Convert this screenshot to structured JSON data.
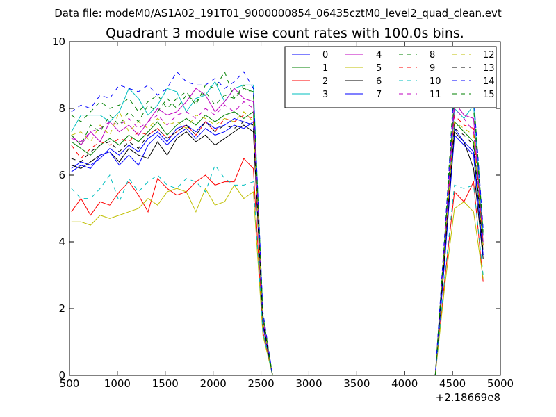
{
  "page": {
    "suptitle": "Data file: modeM0/AS1A02_191T01_9000000854_06435cztM0_level2_quad_clean.evt"
  },
  "chart_data": {
    "type": "line",
    "title": "Quadrant 3 module wise count rates with 100.0s bins.",
    "xlabel": "",
    "ylabel": "",
    "x_offset_label": "+2.18669e8",
    "xlim": [
      500,
      5000
    ],
    "ylim": [
      0,
      10
    ],
    "x_ticks": [
      500,
      1000,
      1500,
      2000,
      2500,
      3000,
      3500,
      4000,
      4500,
      5000
    ],
    "y_ticks": [
      0,
      2,
      4,
      6,
      8,
      10
    ],
    "grid": false,
    "legend_position": "top-right",
    "legend_columns": 4,
    "x": [
      520,
      620,
      720,
      820,
      920,
      1020,
      1120,
      1220,
      1320,
      1420,
      1520,
      1620,
      1720,
      1820,
      1920,
      2020,
      2120,
      2220,
      2320,
      2420,
      2520,
      2620,
      2720,
      2820,
      2920,
      3020,
      3120,
      3220,
      3320,
      3420,
      3520,
      3620,
      3720,
      3820,
      3920,
      4020,
      4120,
      4220,
      4320,
      4420,
      4520,
      4620,
      4720,
      4820
    ],
    "series": [
      {
        "name": "0",
        "color": "#0000ff",
        "dash": "solid",
        "values": [
          6.2,
          6.4,
          6.3,
          6.5,
          6.8,
          6.6,
          6.9,
          6.7,
          7.1,
          7.3,
          7.0,
          7.4,
          7.5,
          7.3,
          7.6,
          7.4,
          7.5,
          7.7,
          7.6,
          7.5,
          1.5,
          0,
          0,
          0,
          0,
          0,
          0,
          0,
          0,
          0,
          0,
          0,
          0,
          0,
          0,
          0,
          0,
          0,
          0,
          3.5,
          7.2,
          6.9,
          6.6,
          3.6
        ]
      },
      {
        "name": "1",
        "color": "#008000",
        "dash": "solid",
        "values": [
          7.0,
          6.8,
          6.6,
          6.9,
          7.1,
          6.9,
          7.2,
          7.0,
          7.3,
          7.6,
          7.2,
          7.5,
          7.7,
          7.5,
          7.8,
          7.6,
          7.8,
          7.9,
          7.7,
          7.9,
          1.6,
          0,
          0,
          0,
          0,
          0,
          0,
          0,
          0,
          0,
          0,
          0,
          0,
          0,
          0,
          0,
          0,
          0,
          0,
          3.8,
          7.6,
          7.3,
          7.0,
          3.9
        ]
      },
      {
        "name": "2",
        "color": "#ff0000",
        "dash": "solid",
        "values": [
          4.9,
          5.3,
          4.8,
          5.2,
          5.1,
          5.5,
          5.8,
          5.4,
          4.9,
          5.9,
          5.6,
          5.4,
          5.5,
          5.8,
          6.0,
          5.7,
          5.8,
          5.8,
          6.5,
          6.2,
          1.3,
          0,
          0,
          0,
          0,
          0,
          0,
          0,
          0,
          0,
          0,
          0,
          0,
          0,
          0,
          0,
          0,
          0,
          0,
          2.9,
          5.5,
          5.2,
          5.8,
          2.8
        ]
      },
      {
        "name": "3",
        "color": "#00bfbf",
        "dash": "solid",
        "values": [
          7.3,
          7.8,
          7.8,
          7.8,
          7.6,
          7.9,
          8.6,
          8.3,
          7.8,
          8.1,
          8.6,
          8.5,
          7.9,
          8.3,
          8.4,
          8.8,
          8.2,
          8.6,
          8.7,
          8.7,
          1.8,
          0,
          0,
          0,
          0,
          0,
          0,
          0,
          0,
          0,
          0,
          0,
          0,
          0,
          0,
          0,
          0,
          0,
          0,
          4.0,
          8.0,
          7.7,
          8.1,
          4.2
        ]
      },
      {
        "name": "4",
        "color": "#bf00bf",
        "dash": "solid",
        "values": [
          7.2,
          6.9,
          7.3,
          7.0,
          7.6,
          7.3,
          7.5,
          7.2,
          7.6,
          8.0,
          7.8,
          7.9,
          8.2,
          8.6,
          8.4,
          7.9,
          8.2,
          8.6,
          8.3,
          8.2,
          1.7,
          0,
          0,
          0,
          0,
          0,
          0,
          0,
          0,
          0,
          0,
          0,
          0,
          0,
          0,
          0,
          0,
          0,
          0,
          4.1,
          8.2,
          7.8,
          7.7,
          4.0
        ]
      },
      {
        "name": "5",
        "color": "#bfbf00",
        "dash": "solid",
        "values": [
          4.6,
          4.6,
          4.5,
          4.8,
          4.7,
          4.8,
          4.9,
          5.0,
          5.3,
          5.1,
          5.5,
          5.6,
          5.5,
          4.9,
          5.6,
          5.1,
          5.2,
          5.7,
          5.3,
          5.5,
          1.2,
          0,
          0,
          0,
          0,
          0,
          0,
          0,
          0,
          0,
          0,
          0,
          0,
          0,
          0,
          0,
          0,
          0,
          0,
          2.7,
          5.0,
          5.2,
          4.9,
          2.9
        ]
      },
      {
        "name": "6",
        "color": "#000000",
        "dash": "solid",
        "values": [
          6.3,
          6.2,
          6.4,
          6.6,
          6.7,
          6.4,
          6.8,
          6.6,
          6.5,
          7.0,
          6.6,
          7.1,
          7.3,
          7.0,
          7.2,
          6.9,
          7.1,
          7.3,
          7.5,
          7.3,
          1.5,
          0,
          0,
          0,
          0,
          0,
          0,
          0,
          0,
          0,
          0,
          0,
          0,
          0,
          0,
          0,
          0,
          0,
          0,
          3.6,
          7.3,
          7.0,
          6.2,
          3.5
        ]
      },
      {
        "name": "7",
        "color": "#0000ff",
        "dash": "solid",
        "values": [
          6.1,
          6.3,
          6.2,
          6.6,
          6.7,
          6.3,
          6.6,
          6.3,
          6.9,
          7.2,
          6.9,
          7.2,
          7.4,
          7.1,
          7.4,
          7.2,
          7.3,
          7.5,
          7.4,
          7.6,
          1.5,
          0,
          0,
          0,
          0,
          0,
          0,
          0,
          0,
          0,
          0,
          0,
          0,
          0,
          0,
          0,
          0,
          0,
          0,
          3.5,
          7.4,
          7.0,
          6.7,
          3.6
        ]
      },
      {
        "name": "8",
        "color": "#008000",
        "dash": "dashed",
        "values": [
          7.8,
          7.6,
          7.9,
          8.2,
          8.0,
          8.1,
          8.3,
          7.9,
          8.2,
          8.4,
          8.0,
          8.3,
          8.5,
          8.1,
          8.7,
          8.6,
          9.1,
          8.3,
          8.7,
          8.4,
          1.8,
          0,
          0,
          0,
          0,
          0,
          0,
          0,
          0,
          0,
          0,
          0,
          0,
          0,
          0,
          0,
          0,
          0,
          0,
          4.2,
          8.9,
          8.6,
          8.4,
          4.3
        ]
      },
      {
        "name": "9",
        "color": "#ff0000",
        "dash": "dashed",
        "values": [
          6.9,
          6.5,
          6.8,
          7.0,
          6.9,
          7.1,
          7.0,
          7.3,
          7.2,
          7.4,
          7.1,
          7.3,
          7.5,
          7.2,
          7.6,
          7.3,
          7.7,
          7.6,
          7.8,
          7.7,
          1.6,
          0,
          0,
          0,
          0,
          0,
          0,
          0,
          0,
          0,
          0,
          0,
          0,
          0,
          0,
          0,
          0,
          0,
          0,
          3.8,
          7.8,
          7.5,
          7.4,
          3.9
        ]
      },
      {
        "name": "10",
        "color": "#00bfbf",
        "dash": "dashed",
        "values": [
          5.6,
          5.3,
          5.3,
          5.6,
          6.0,
          5.2,
          5.9,
          5.5,
          5.8,
          6.0,
          5.7,
          5.6,
          5.9,
          5.8,
          5.5,
          6.3,
          5.9,
          5.7,
          5.7,
          5.8,
          1.3,
          0,
          0,
          0,
          0,
          0,
          0,
          0,
          0,
          0,
          0,
          0,
          0,
          0,
          0,
          0,
          0,
          0,
          0,
          3.0,
          5.7,
          5.6,
          5.7,
          3.0
        ]
      },
      {
        "name": "11",
        "color": "#bf00bf",
        "dash": "dashed",
        "values": [
          7.1,
          7.0,
          7.3,
          7.4,
          7.6,
          7.5,
          7.7,
          7.4,
          7.6,
          7.8,
          7.5,
          7.8,
          7.9,
          7.7,
          8.0,
          7.8,
          8.1,
          7.9,
          8.2,
          8.0,
          1.7,
          0,
          0,
          0,
          0,
          0,
          0,
          0,
          0,
          0,
          0,
          0,
          0,
          0,
          0,
          0,
          0,
          0,
          0,
          4.0,
          8.0,
          7.7,
          7.3,
          4.1
        ]
      },
      {
        "name": "12",
        "color": "#bfbf00",
        "dash": "dashed",
        "values": [
          7.2,
          7.3,
          7.0,
          7.5,
          7.2,
          7.9,
          7.3,
          7.6,
          7.4,
          7.7,
          7.5,
          7.6,
          7.4,
          7.8,
          7.7,
          7.5,
          7.7,
          7.6,
          7.9,
          7.6,
          1.6,
          0,
          0,
          0,
          0,
          0,
          0,
          0,
          0,
          0,
          0,
          0,
          0,
          0,
          0,
          0,
          0,
          0,
          0,
          3.9,
          7.6,
          7.4,
          7.2,
          3.8
        ]
      },
      {
        "name": "13",
        "color": "#000000",
        "dash": "dashed",
        "values": [
          6.5,
          6.4,
          6.7,
          6.9,
          7.0,
          6.7,
          7.0,
          6.8,
          7.2,
          7.4,
          7.1,
          7.3,
          7.5,
          7.2,
          7.6,
          7.3,
          7.5,
          7.4,
          7.6,
          7.5,
          1.6,
          0,
          0,
          0,
          0,
          0,
          0,
          0,
          0,
          0,
          0,
          0,
          0,
          0,
          0,
          0,
          0,
          0,
          0,
          3.7,
          7.4,
          7.2,
          6.9,
          3.7
        ]
      },
      {
        "name": "14",
        "color": "#0000ff",
        "dash": "dashed",
        "values": [
          7.9,
          8.1,
          8.0,
          8.4,
          8.3,
          8.7,
          8.6,
          8.5,
          8.7,
          8.4,
          8.6,
          9.1,
          8.8,
          8.7,
          8.7,
          8.9,
          8.6,
          8.8,
          9.1,
          8.6,
          1.9,
          0,
          0,
          0,
          0,
          0,
          0,
          0,
          0,
          0,
          0,
          0,
          0,
          0,
          0,
          0,
          0,
          0,
          0,
          4.3,
          8.6,
          9.0,
          8.4,
          4.4
        ]
      },
      {
        "name": "15",
        "color": "#008000",
        "dash": "dashed",
        "values": [
          7.2,
          6.9,
          7.5,
          7.3,
          7.8,
          7.5,
          7.9,
          7.6,
          8.1,
          7.9,
          8.3,
          8.0,
          8.4,
          8.2,
          8.5,
          8.1,
          8.4,
          8.3,
          8.6,
          8.5,
          1.8,
          0,
          0,
          0,
          0,
          0,
          0,
          0,
          0,
          0,
          0,
          0,
          0,
          0,
          0,
          0,
          0,
          0,
          0,
          4.1,
          8.4,
          8.2,
          8.0,
          4.2
        ]
      }
    ]
  }
}
